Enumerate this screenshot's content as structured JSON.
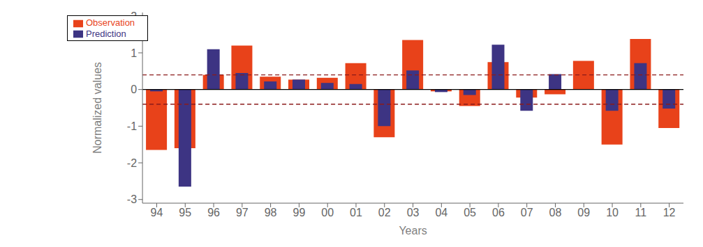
{
  "chart_data": {
    "type": "bar",
    "xlabel": "Years",
    "ylabel": "Normalized values",
    "categories": [
      "94",
      "95",
      "96",
      "97",
      "98",
      "99",
      "00",
      "01",
      "02",
      "03",
      "04",
      "05",
      "06",
      "07",
      "08",
      "09",
      "10",
      "11",
      "12"
    ],
    "series": [
      {
        "name": "Observation",
        "color": "#e8421a",
        "values": [
          -1.65,
          -1.6,
          0.4,
          1.2,
          0.35,
          0.27,
          0.32,
          0.72,
          -1.3,
          1.35,
          -0.05,
          -0.45,
          0.75,
          -0.22,
          -0.13,
          0.78,
          -1.5,
          1.38,
          -1.05
        ]
      },
      {
        "name": "Prediction",
        "color": "#3d3483",
        "values": [
          -0.05,
          -2.65,
          1.1,
          0.45,
          0.22,
          0.27,
          0.18,
          0.15,
          -1.0,
          0.52,
          -0.07,
          -0.15,
          1.22,
          -0.58,
          0.42,
          0.0,
          -0.58,
          0.72,
          -0.52
        ]
      }
    ],
    "hlines": [
      {
        "value": 0.4,
        "color": "#8b1a1a",
        "line_style": "dashed"
      },
      {
        "value": -0.4,
        "color": "#8b1a1a",
        "line_style": "dashed"
      },
      {
        "value": 0,
        "color": "#000000",
        "line_style": "solid"
      }
    ],
    "ylim": [
      -3.1,
      2.1
    ],
    "yticks": [
      -3,
      -2,
      -1,
      0,
      1,
      2
    ],
    "legend": "upper left",
    "grid": false
  }
}
